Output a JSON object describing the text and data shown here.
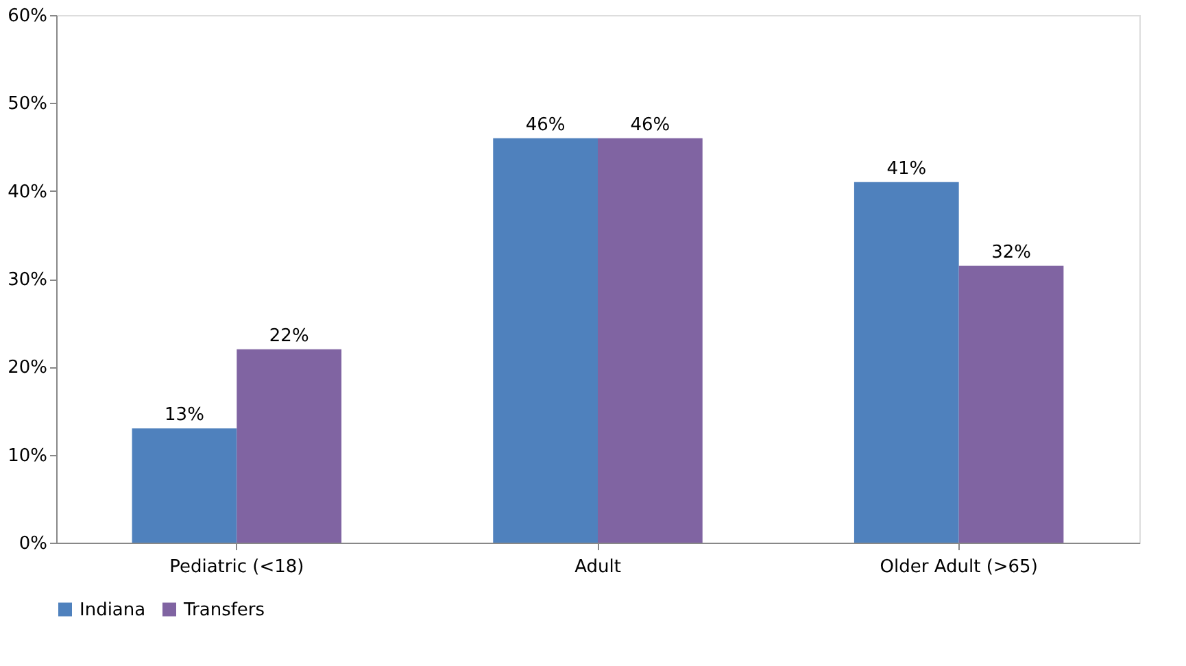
{
  "chart_data": {
    "type": "bar",
    "categories": [
      "Pediatric (<18)",
      "Adult",
      "Older Adult (>65)"
    ],
    "series": [
      {
        "name": "Indiana",
        "color": "#4f81bd",
        "values": [
          13,
          46,
          41
        ],
        "value_labels": [
          "13%",
          "46%",
          "41%"
        ]
      },
      {
        "name": "Transfers",
        "color": "#8064a2",
        "values": [
          22,
          46,
          31.5
        ],
        "value_labels": [
          "22%",
          "46%",
          "32%"
        ]
      }
    ],
    "ylim": [
      0,
      60
    ],
    "yticks": [
      {
        "value": 0,
        "label": "0%"
      },
      {
        "value": 10,
        "label": "10%"
      },
      {
        "value": 20,
        "label": "20%"
      },
      {
        "value": 30,
        "label": "30%"
      },
      {
        "value": 40,
        "label": "40%"
      },
      {
        "value": 50,
        "label": "50%"
      },
      {
        "value": 60,
        "label": "60%"
      }
    ],
    "grid": false,
    "legend": "bottom"
  }
}
